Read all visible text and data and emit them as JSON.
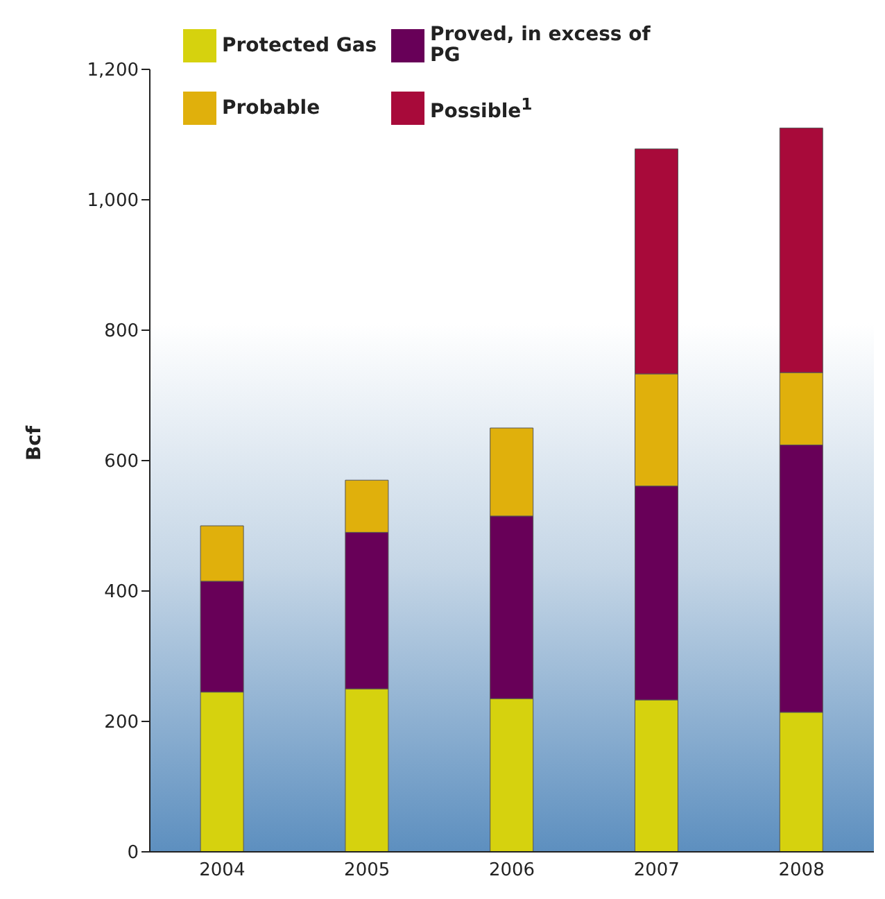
{
  "chart_data": {
    "type": "bar",
    "stacked": true,
    "ylabel": "Bcf",
    "categories": [
      "2004",
      "2005",
      "2006",
      "2007",
      "2008"
    ],
    "series": [
      {
        "name": "Protected Gas",
        "color": "#d6d20e",
        "values": [
          245,
          250,
          235,
          233,
          214
        ]
      },
      {
        "name": "Proved, in excess of PG",
        "color": "#680058",
        "values": [
          170,
          240,
          280,
          328,
          410
        ]
      },
      {
        "name": "Probable",
        "color": "#e0b00c",
        "values": [
          85,
          80,
          135,
          172,
          111
        ]
      },
      {
        "name": "Possible$^{1}$",
        "color": "#a80a3a",
        "values": [
          null,
          null,
          null,
          345,
          375
        ]
      }
    ],
    "ylim": [
      0,
      1200
    ],
    "yticks": [
      0,
      200,
      400,
      600,
      800,
      {
        "value": 1000,
        "label": "1,000"
      },
      {
        "value": 1200,
        "label": "1,200"
      }
    ],
    "legend": "top"
  }
}
